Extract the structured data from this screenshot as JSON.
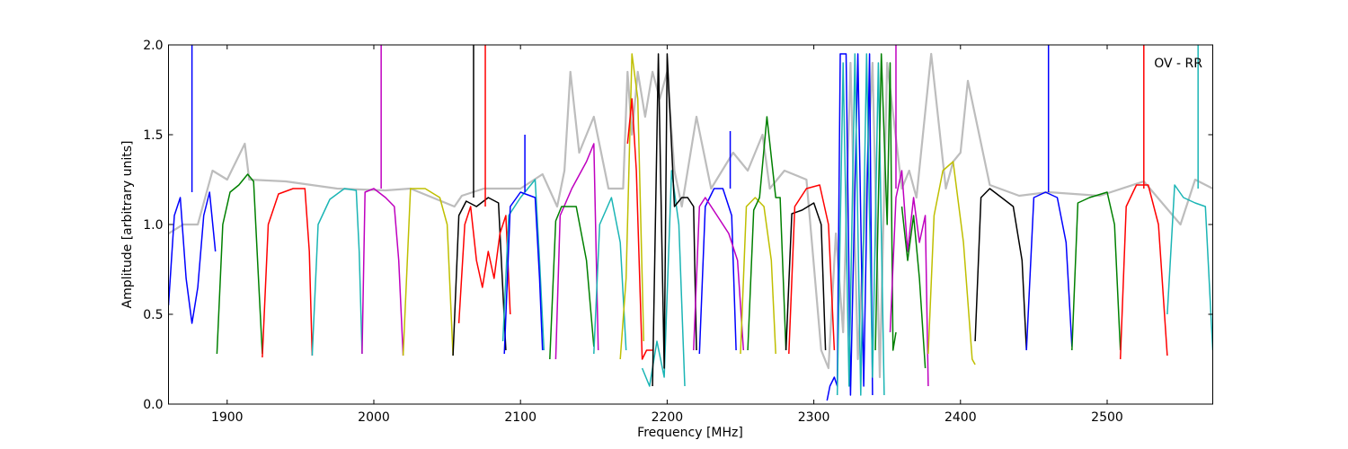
{
  "chart_data": {
    "type": "line",
    "title": "",
    "xlabel": "Frequency [MHz]",
    "ylabel": "Amplitude [arbitrary units]",
    "annotation": "OV - RR",
    "xlim": [
      1860,
      2572
    ],
    "ylim": [
      0.0,
      2.0
    ],
    "xticks": [
      1900,
      2000,
      2100,
      2200,
      2300,
      2400,
      2500
    ],
    "xtick_labels": [
      "1900",
      "2000",
      "2100",
      "2200",
      "2300",
      "2400",
      "2500"
    ],
    "yticks": [
      0.0,
      0.5,
      1.0,
      1.5,
      2.0
    ],
    "ytick_labels": [
      "0.0",
      "0.5",
      "1.0",
      "1.5",
      "2.0"
    ],
    "grid": false,
    "legend": "none",
    "colors": {
      "blue": "#0000ff",
      "green": "#008000",
      "red": "#ff0000",
      "cyan": "#1bb5b5",
      "magenta": "#bf00bf",
      "yellow": "#bfbf00",
      "black": "#000000",
      "reference": "#bdbdbd"
    },
    "reference_trace": {
      "x": [
        1860,
        1870,
        1880,
        1890,
        1900,
        1912,
        1915,
        1940,
        1975,
        2008,
        2025,
        2055,
        2060,
        2075,
        2090,
        2100,
        2115,
        2125,
        2130,
        2134,
        2140,
        2150,
        2160,
        2170,
        2173,
        2176,
        2180,
        2185,
        2190,
        2195,
        2200,
        2205,
        2210,
        2220,
        2230,
        2245,
        2255,
        2265,
        2270,
        2280,
        2295,
        2305,
        2310,
        2315,
        2320,
        2325,
        2330,
        2340,
        2345,
        2350,
        2360,
        2365,
        2370,
        2380,
        2390,
        2395,
        2400,
        2405,
        2420,
        2440,
        2460,
        2495,
        2525,
        2550,
        2560,
        2572
      ],
      "y": [
        0.95,
        1.0,
        1.0,
        1.3,
        1.25,
        1.45,
        1.25,
        1.24,
        1.2,
        1.19,
        1.2,
        1.1,
        1.16,
        1.2,
        1.2,
        1.2,
        1.28,
        1.1,
        1.3,
        1.85,
        1.4,
        1.6,
        1.2,
        1.2,
        1.85,
        1.5,
        1.85,
        1.6,
        1.85,
        1.7,
        1.85,
        1.3,
        1.1,
        1.6,
        1.2,
        1.4,
        1.3,
        1.5,
        1.2,
        1.3,
        1.25,
        0.3,
        0.2,
        0.95,
        0.4,
        1.9,
        0.25,
        1.9,
        0.15,
        1.9,
        1.2,
        1.3,
        1.15,
        1.95,
        1.2,
        1.35,
        1.4,
        1.8,
        1.22,
        1.16,
        1.18,
        1.16,
        1.24,
        1.0,
        1.25,
        1.2
      ]
    },
    "series": [
      {
        "color": "blue",
        "x": [
          1860,
          1864,
          1868,
          1872,
          1876,
          1878,
          1880,
          1884,
          1888,
          1892
        ],
        "y": [
          0.55,
          1.05,
          1.15,
          0.7,
          0.45,
          0.55,
          0.65,
          1.05,
          1.18,
          0.85
        ],
        "spike": {
          "x": 1876,
          "y": 2.0
        }
      },
      {
        "color": "green",
        "x": [
          1893,
          1897,
          1902,
          1908,
          1914,
          1918,
          1921,
          1924
        ],
        "y": [
          0.28,
          1.0,
          1.18,
          1.22,
          1.28,
          1.24,
          0.75,
          0.28
        ]
      },
      {
        "color": "red",
        "x": [
          1924,
          1928,
          1935,
          1945,
          1953,
          1956,
          1958
        ],
        "y": [
          0.26,
          1.0,
          1.17,
          1.2,
          1.2,
          0.85,
          0.27
        ]
      },
      {
        "color": "cyan",
        "x": [
          1958,
          1962,
          1970,
          1980,
          1988,
          1990,
          1992
        ],
        "y": [
          0.27,
          1.0,
          1.14,
          1.2,
          1.19,
          0.85,
          0.28
        ]
      },
      {
        "color": "magenta",
        "x": [
          1992,
          1994,
          2000,
          2008,
          2014,
          2017,
          2020
        ],
        "y": [
          0.28,
          1.18,
          1.2,
          1.15,
          1.1,
          0.8,
          0.27
        ],
        "spike": {
          "x": 2005,
          "y": 2.0
        }
      },
      {
        "color": "yellow",
        "x": [
          2020,
          2025,
          2035,
          2045,
          2050,
          2054
        ],
        "y": [
          0.27,
          1.2,
          1.2,
          1.15,
          1.0,
          0.27
        ]
      },
      {
        "color": "black",
        "x": [
          2054,
          2058,
          2063,
          2070,
          2078,
          2085,
          2090
        ],
        "y": [
          0.27,
          1.05,
          1.13,
          1.1,
          1.15,
          1.12,
          0.3
        ],
        "spike": {
          "x": 2068,
          "y": 2.0
        }
      },
      {
        "color": "red",
        "x": [
          2058,
          2062,
          2066,
          2070,
          2074,
          2078,
          2082,
          2086,
          2090,
          2093
        ],
        "y": [
          0.45,
          1.0,
          1.1,
          0.8,
          0.65,
          0.85,
          0.7,
          0.95,
          1.05,
          0.5
        ],
        "spike": {
          "x": 2076,
          "y": 2.0
        }
      },
      {
        "color": "cyan",
        "x": [
          2088,
          2092,
          2100,
          2110,
          2113,
          2116
        ],
        "y": [
          0.35,
          1.05,
          1.15,
          1.25,
          0.8,
          0.3
        ]
      },
      {
        "color": "blue",
        "x": [
          2089,
          2093,
          2100,
          2110,
          2113,
          2115
        ],
        "y": [
          0.28,
          1.1,
          1.18,
          1.15,
          0.7,
          0.3
        ],
        "spike": {
          "x": 2103,
          "y": 1.5
        }
      },
      {
        "color": "magenta",
        "x": [
          2124,
          2127,
          2135,
          2145,
          2150,
          2153
        ],
        "y": [
          0.25,
          1.05,
          1.2,
          1.35,
          1.45,
          0.3
        ]
      },
      {
        "color": "green",
        "x": [
          2120,
          2124,
          2128,
          2138,
          2145,
          2150
        ],
        "y": [
          0.25,
          1.02,
          1.1,
          1.1,
          0.8,
          0.32
        ]
      },
      {
        "color": "cyan",
        "x": [
          2150,
          2154,
          2162,
          2168,
          2172
        ],
        "y": [
          0.28,
          1.0,
          1.15,
          0.9,
          0.3
        ]
      },
      {
        "color": "yellow",
        "x": [
          2168,
          2172,
          2176,
          2180,
          2184
        ],
        "y": [
          0.25,
          0.7,
          1.95,
          1.7,
          0.35
        ]
      },
      {
        "color": "red",
        "x": [
          2173,
          2176,
          2179,
          2183,
          2186,
          2190
        ],
        "y": [
          1.45,
          1.7,
          1.3,
          0.25,
          0.3,
          0.3
        ]
      },
      {
        "color": "cyan",
        "x": [
          2183,
          2188,
          2193,
          2198,
          2203,
          2208,
          2212
        ],
        "y": [
          0.2,
          0.1,
          0.35,
          0.15,
          1.3,
          1.0,
          0.1
        ]
      },
      {
        "color": "black",
        "x": [
          2190,
          2194,
          2198,
          2200,
          2205,
          2210,
          2214,
          2218,
          2220
        ],
        "y": [
          0.1,
          1.95,
          0.2,
          1.95,
          1.1,
          1.15,
          1.15,
          1.1,
          0.3
        ]
      },
      {
        "color": "blue",
        "x": [
          2222,
          2226,
          2232,
          2238,
          2244,
          2247
        ],
        "y": [
          0.28,
          1.1,
          1.2,
          1.2,
          1.05,
          0.3
        ],
        "spike": {
          "x": 2243,
          "y": 1.52
        }
      },
      {
        "color": "magenta",
        "x": [
          2218,
          2222,
          2226,
          2234,
          2242,
          2248,
          2252
        ],
        "y": [
          0.3,
          1.1,
          1.15,
          1.05,
          0.95,
          0.8,
          0.3
        ]
      },
      {
        "color": "yellow",
        "x": [
          2250,
          2254,
          2260,
          2266,
          2271,
          2274
        ],
        "y": [
          0.28,
          1.1,
          1.15,
          1.1,
          0.8,
          0.28
        ]
      },
      {
        "color": "green",
        "x": [
          2255,
          2259,
          2263,
          2268,
          2274,
          2277,
          2281
        ],
        "y": [
          0.3,
          1.08,
          1.15,
          1.6,
          1.15,
          1.15,
          0.3
        ]
      },
      {
        "color": "black",
        "x": [
          2281,
          2285,
          2292,
          2300,
          2305,
          2308
        ],
        "y": [
          0.3,
          1.06,
          1.08,
          1.12,
          1.0,
          0.3
        ]
      },
      {
        "color": "red",
        "x": [
          2283,
          2287,
          2295,
          2304,
          2310,
          2314
        ],
        "y": [
          0.28,
          1.1,
          1.2,
          1.22,
          1.0,
          0.3
        ]
      },
      {
        "color": "blue",
        "x": [
          2309,
          2311,
          2314,
          2316,
          2318,
          2322,
          2325,
          2330,
          2334,
          2338,
          2340
        ],
        "y": [
          0.02,
          0.1,
          0.15,
          0.1,
          1.95,
          1.95,
          0.05,
          1.95,
          0.1,
          1.95,
          0.05
        ]
      },
      {
        "color": "cyan",
        "x": [
          2316,
          2320,
          2324,
          2328,
          2332,
          2336,
          2340,
          2344,
          2348
        ],
        "y": [
          0.05,
          1.9,
          0.1,
          1.95,
          0.05,
          1.95,
          0.15,
          1.9,
          0.05
        ]
      },
      {
        "color": "green",
        "x": [
          2342,
          2346,
          2350,
          2352,
          2354,
          2356
        ],
        "y": [
          0.3,
          1.95,
          1.0,
          1.9,
          0.3,
          0.4
        ]
      },
      {
        "color": "magenta",
        "x": [
          2352,
          2356,
          2360,
          2364,
          2368,
          2372,
          2376,
          2378
        ],
        "y": [
          0.4,
          1.15,
          1.3,
          0.85,
          1.15,
          0.9,
          1.05,
          0.1
        ],
        "spike": {
          "x": 2356,
          "y": 2.0
        }
      },
      {
        "color": "green",
        "x": [
          2360,
          2364,
          2368,
          2372,
          2376
        ],
        "y": [
          1.1,
          0.8,
          1.05,
          0.7,
          0.2
        ]
      },
      {
        "color": "yellow",
        "x": [
          2378,
          2382,
          2388,
          2395,
          2402,
          2408,
          2410
        ],
        "y": [
          0.28,
          1.05,
          1.3,
          1.35,
          0.9,
          0.25,
          0.22
        ]
      },
      {
        "color": "black",
        "x": [
          2410,
          2414,
          2420,
          2428,
          2436,
          2442,
          2445
        ],
        "y": [
          0.35,
          1.15,
          1.2,
          1.15,
          1.1,
          0.8,
          0.3
        ]
      },
      {
        "color": "blue",
        "x": [
          2445,
          2450,
          2458,
          2466,
          2472,
          2476
        ],
        "y": [
          0.3,
          1.15,
          1.18,
          1.15,
          0.9,
          0.32
        ],
        "spike": {
          "x": 2460,
          "y": 2.0
        }
      },
      {
        "color": "green",
        "x": [
          2476,
          2480,
          2488,
          2500,
          2505,
          2509
        ],
        "y": [
          0.3,
          1.12,
          1.15,
          1.18,
          1.0,
          0.3
        ]
      },
      {
        "color": "red",
        "x": [
          2509,
          2513,
          2520,
          2528,
          2535,
          2541
        ],
        "y": [
          0.25,
          1.1,
          1.22,
          1.22,
          1.0,
          0.27
        ],
        "spike": {
          "x": 2525,
          "y": 2.0
        }
      },
      {
        "color": "cyan",
        "x": [
          2541,
          2546,
          2552,
          2560,
          2567,
          2572
        ],
        "y": [
          0.5,
          1.22,
          1.15,
          1.12,
          1.1,
          0.3
        ],
        "spike": {
          "x": 2562,
          "y": 2.0
        }
      }
    ]
  }
}
